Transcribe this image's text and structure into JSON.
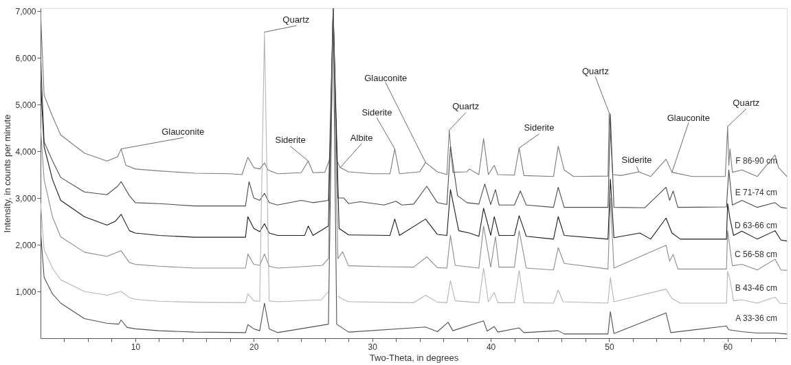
{
  "chart_data": {
    "type": "line",
    "xlabel": "Two-Theta, in degrees",
    "ylabel": "Intensity, in counts per minute",
    "xlim": [
      2,
      65
    ],
    "ylim": [
      0,
      7060
    ],
    "xticks": [
      {
        "value": 4,
        "label": null
      },
      {
        "value": 6,
        "label": null
      },
      {
        "value": 8,
        "label": null
      },
      10,
      {
        "value": 12,
        "label": null
      },
      {
        "value": 14,
        "label": null
      },
      {
        "value": 16,
        "label": null
      },
      {
        "value": 18,
        "label": null
      },
      20,
      {
        "value": 22,
        "label": null
      },
      {
        "value": 24,
        "label": null
      },
      {
        "value": 26,
        "label": null
      },
      {
        "value": 28,
        "label": null
      },
      30,
      {
        "value": 32,
        "label": null
      },
      {
        "value": 34,
        "label": null
      },
      {
        "value": 36,
        "label": null
      },
      {
        "value": 38,
        "label": null
      },
      40,
      {
        "value": 42,
        "label": null
      },
      {
        "value": 44,
        "label": null
      },
      {
        "value": 46,
        "label": null
      },
      {
        "value": 48,
        "label": null
      },
      50,
      {
        "value": 52,
        "label": null
      },
      {
        "value": 54,
        "label": null
      },
      {
        "value": 56,
        "label": null
      },
      {
        "value": 58,
        "label": null
      },
      60,
      {
        "value": 62,
        "label": null
      },
      {
        "value": 64,
        "label": null
      }
    ],
    "yticks": [
      {
        "value": 1000,
        "label": "1,000"
      },
      {
        "value": 2000,
        "label": "2,000"
      },
      {
        "value": 3000,
        "label": "3,000"
      },
      {
        "value": 4000,
        "label": "4,000"
      },
      {
        "value": 5000,
        "label": "5,000"
      },
      {
        "value": 6000,
        "label": "6,000"
      },
      {
        "value": 7000,
        "label": "7,000"
      }
    ],
    "grid": false,
    "line_style": "solid",
    "series": [
      {
        "name": "F 86-90 cm",
        "color": "#7a7a7a",
        "x": [
          2,
          2.3,
          3,
          3.7,
          5.7,
          7.6,
          8.5,
          8.8,
          9.2,
          10,
          12,
          15,
          18,
          19,
          19.5,
          20,
          20.5,
          20.9,
          21.2,
          22,
          24,
          24.6,
          25,
          26,
          26.5,
          26.7,
          27,
          27.3,
          28,
          30,
          31.5,
          31.9,
          32.3,
          34,
          34.5,
          35.5,
          36.3,
          36.5,
          36.8,
          38,
          38.2,
          39,
          39.4,
          39.8,
          40.3,
          40.6,
          42,
          42.4,
          42.8,
          45.3,
          45.7,
          46.2,
          47,
          49.9,
          50,
          50.3,
          51,
          52.5,
          53.5,
          54.8,
          55.3,
          57,
          59.8,
          60,
          60.1,
          60.2,
          60.4,
          61.2,
          62.5,
          64,
          64.3,
          65
        ],
        "values": [
          7000,
          5200,
          4750,
          4350,
          3960,
          3790,
          3880,
          4050,
          3700,
          3620,
          3580,
          3530,
          3520,
          3500,
          3870,
          3650,
          3620,
          3750,
          3600,
          3520,
          3540,
          3790,
          3540,
          3550,
          3900,
          7060,
          3800,
          3650,
          3560,
          3520,
          3520,
          4050,
          3520,
          3560,
          3760,
          3560,
          3500,
          4450,
          3550,
          3560,
          3620,
          3500,
          4270,
          3500,
          3700,
          3500,
          3490,
          4070,
          3480,
          3460,
          4110,
          3600,
          3460,
          3470,
          4820,
          3500,
          3480,
          3560,
          3460,
          3830,
          3550,
          3460,
          3460,
          4530,
          3700,
          4050,
          3550,
          3600,
          3460,
          3920,
          3650,
          3460
        ]
      },
      {
        "name": "E 71-74 cm",
        "color": "#4a4a4a",
        "x": [
          2,
          2.3,
          3,
          3.7,
          5.7,
          7.6,
          8.5,
          8.8,
          9.5,
          10,
          12,
          15,
          18,
          19.3,
          19.6,
          20,
          20.5,
          20.9,
          21.3,
          22,
          24,
          25,
          26.3,
          26.7,
          27.1,
          27.6,
          28,
          29,
          31,
          32,
          32.5,
          33.5,
          34.6,
          35.5,
          36.3,
          36.6,
          37.2,
          38,
          39,
          39.5,
          40,
          40.4,
          40.7,
          42,
          42.5,
          43,
          45.3,
          45.7,
          46.2,
          49.9,
          50.1,
          50.4,
          53,
          54.8,
          55.1,
          55.4,
          55.8,
          59.9,
          60.1,
          60.4,
          61.2,
          62.5,
          64,
          64.5,
          65
        ],
        "values": [
          6100,
          4200,
          3800,
          3440,
          3130,
          3070,
          3250,
          3350,
          3050,
          2900,
          2880,
          2830,
          2830,
          2830,
          3350,
          3000,
          2950,
          3100,
          2900,
          2850,
          2950,
          2900,
          2950,
          7060,
          3000,
          3000,
          2880,
          2920,
          2850,
          2930,
          2850,
          2870,
          3250,
          2900,
          2860,
          4100,
          3050,
          2900,
          2870,
          3300,
          2860,
          3180,
          2850,
          2850,
          3150,
          2850,
          2800,
          3230,
          2800,
          2800,
          4800,
          2800,
          2790,
          3230,
          2950,
          3150,
          2800,
          2810,
          3600,
          2850,
          2950,
          2800,
          2900,
          2800,
          2780
        ]
      },
      {
        "name": "D 63-66 cm",
        "color": "#1a1a1a",
        "x": [
          2,
          2.3,
          3,
          3.7,
          5.7,
          7.6,
          8.3,
          8.8,
          9.5,
          10,
          12,
          15,
          18,
          19.3,
          19.5,
          20,
          20.5,
          20.9,
          21.3,
          22,
          24.3,
          24.6,
          25,
          26.3,
          26.7,
          27.2,
          28,
          31.5,
          31.9,
          32.3,
          34.5,
          35.5,
          36.3,
          36.6,
          37.3,
          38.2,
          39,
          39.4,
          40,
          40.3,
          40.7,
          42,
          42.4,
          43,
          45.3,
          45.7,
          46.2,
          49.9,
          50.1,
          50.4,
          52.6,
          53.5,
          54.8,
          55.3,
          56,
          59.9,
          60,
          60.2,
          60.5,
          61.2,
          62.5,
          64,
          64.5,
          65
        ],
        "values": [
          5500,
          4100,
          3400,
          2950,
          2600,
          2420,
          2500,
          2650,
          2300,
          2250,
          2200,
          2160,
          2160,
          2160,
          2600,
          2350,
          2280,
          2450,
          2250,
          2200,
          2200,
          2400,
          2200,
          2400,
          7060,
          2350,
          2210,
          2200,
          2550,
          2200,
          2550,
          2220,
          2200,
          3180,
          2300,
          2250,
          2180,
          2780,
          2200,
          2600,
          2200,
          2200,
          2620,
          2180,
          2120,
          2600,
          2200,
          2120,
          3400,
          2150,
          2250,
          2120,
          2570,
          2250,
          2120,
          2120,
          2880,
          2550,
          2200,
          2290,
          2120,
          2300,
          2100,
          2080
        ]
      },
      {
        "name": "C 56-58 cm",
        "color": "#8c8c8c",
        "x": [
          2,
          2.3,
          3,
          3.7,
          5.7,
          7.6,
          8.8,
          9.5,
          10,
          12,
          15,
          18,
          19.3,
          19.5,
          20,
          20.5,
          20.9,
          21.3,
          22,
          24,
          25.8,
          26.3,
          26.7,
          27.1,
          27.5,
          28,
          31,
          33.5,
          34.6,
          35.5,
          36.3,
          36.6,
          37,
          39,
          39.4,
          40,
          40.4,
          40.7,
          42,
          42.4,
          43,
          45.3,
          45.7,
          46.2,
          49.9,
          50.1,
          50.4,
          54.8,
          55.1,
          55.4,
          55.8,
          59.9,
          60,
          60.4,
          61.2,
          62.5,
          64,
          64.5,
          65
        ],
        "values": [
          4500,
          3400,
          2600,
          2170,
          1840,
          1750,
          1870,
          1620,
          1580,
          1540,
          1500,
          1500,
          1500,
          1800,
          1580,
          1560,
          1800,
          1540,
          1500,
          1530,
          1560,
          1700,
          7060,
          1700,
          1850,
          1550,
          1530,
          1520,
          1740,
          1510,
          1500,
          2200,
          1560,
          1500,
          2400,
          1520,
          2170,
          1520,
          1520,
          2300,
          1500,
          1460,
          1940,
          1600,
          1480,
          3000,
          1500,
          1990,
          1650,
          1790,
          1480,
          1480,
          2300,
          1550,
          1580,
          1460,
          1690,
          1460,
          1450
        ]
      },
      {
        "name": "B 43-46 cm",
        "color": "#b4b4b4",
        "x": [
          2,
          2.3,
          3,
          3.7,
          5.7,
          7.6,
          8.8,
          9.5,
          10,
          12,
          15,
          19.3,
          19.5,
          20,
          20.5,
          20.9,
          21.3,
          22,
          25.7,
          26.3,
          26.7,
          27.1,
          27.4,
          28,
          33.5,
          34.5,
          35.5,
          36.3,
          36.6,
          37,
          39,
          39.4,
          39.8,
          40.3,
          40.6,
          42,
          42.4,
          42.8,
          45.3,
          45.7,
          46.1,
          49.9,
          50.1,
          50.4,
          54.8,
          55.3,
          56,
          59.9,
          60,
          60.2,
          60.5,
          61.2,
          62.5,
          64,
          64.4,
          65
        ],
        "values": [
          2900,
          1900,
          1500,
          1250,
          1000,
          920,
          1000,
          870,
          830,
          790,
          770,
          760,
          950,
          800,
          790,
          6550,
          800,
          780,
          820,
          1000,
          null,
          900,
          850,
          780,
          760,
          920,
          770,
          760,
          1230,
          800,
          760,
          1500,
          780,
          980,
          760,
          760,
          1450,
          760,
          750,
          1030,
          780,
          750,
          1300,
          780,
          1050,
          850,
          750,
          750,
          1430,
          1250,
          800,
          820,
          750,
          880,
          750,
          740
        ]
      },
      {
        "name": "A 33-36 cm",
        "color": "#505050",
        "x": [
          2,
          2.3,
          3,
          3.7,
          5.7,
          7.6,
          8.6,
          8.8,
          9.3,
          10,
          12,
          15,
          19.3,
          19.5,
          20,
          20.5,
          20.9,
          21.3,
          22,
          26.3,
          26.7,
          27,
          28,
          34.5,
          35.5,
          36.4,
          36.8,
          39.4,
          39.7,
          40.3,
          40.6,
          42.4,
          42.8,
          45.7,
          46.2,
          49.9,
          50.1,
          50.4,
          54.8,
          55.2,
          59.9,
          60.1,
          61.2,
          62.5,
          64,
          65
        ],
        "values": [
          2300,
          1300,
          950,
          750,
          420,
          320,
          300,
          390,
          230,
          200,
          160,
          130,
          120,
          290,
          200,
          160,
          750,
          200,
          120,
          300,
          7060,
          300,
          130,
          240,
          140,
          340,
          160,
          370,
          150,
          250,
          130,
          220,
          120,
          160,
          90,
          90,
          570,
          100,
          540,
          120,
          260,
          180,
          140,
          110,
          110,
          90
        ]
      }
    ],
    "annotations": [
      {
        "text": "Glauconite",
        "x": 8.8,
        "y": 4050
      },
      {
        "text": "Quartz",
        "x": 20.9,
        "y": 6550
      },
      {
        "text": "Siderite",
        "x": 24.6,
        "y": 3790
      },
      {
        "text": "Albite",
        "x": 27.3,
        "y": 3650
      },
      {
        "text": "Glauconite",
        "x": 34.5,
        "y": 3760
      },
      {
        "text": "Siderite",
        "x": 31.9,
        "y": 4050
      },
      {
        "text": "Quartz",
        "x": 36.5,
        "y": 4450
      },
      {
        "text": "Siderite",
        "x": 42.4,
        "y": 4070
      },
      {
        "text": "Quartz",
        "x": 50,
        "y": 4820
      },
      {
        "text": "Siderite",
        "x": 52.5,
        "y": 3560
      },
      {
        "text": "Glauconite",
        "x": 55.3,
        "y": 3550
      },
      {
        "text": "Quartz",
        "x": 60,
        "y": 4530
      }
    ]
  }
}
